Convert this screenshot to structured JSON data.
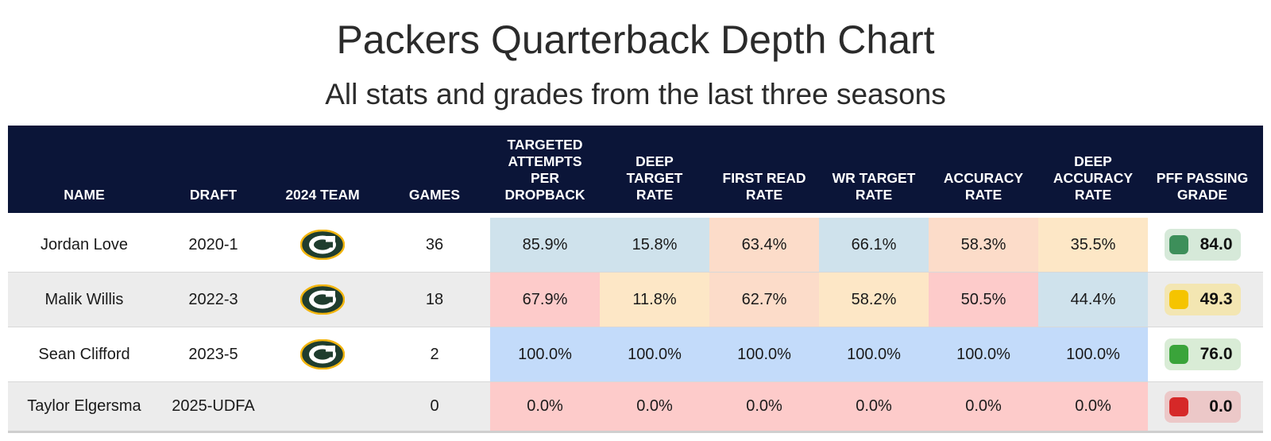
{
  "header": {
    "title": "Packers Quarterback Depth Chart",
    "subtitle": "All stats and grades from the last three seasons"
  },
  "columns": [
    "NAME",
    "DRAFT",
    "2024 TEAM",
    "GAMES",
    "TARGETED\nATTEMPTS\nPER\nDROPBACK",
    "DEEP\nTARGET\nRATE",
    "FIRST READ\nRATE",
    "WR TARGET\nRATE",
    "ACCURACY\nRATE",
    "DEEP\nACCURACY\nRATE",
    "PFF PASSING\nGRADE"
  ],
  "rows": [
    {
      "name": "Jordan Love",
      "draft": "2020-1",
      "team_logo": "packers-logo-icon",
      "games": "36",
      "stats": [
        {
          "value": "85.9%",
          "color": "#cfe2ec"
        },
        {
          "value": "15.8%",
          "color": "#cfe2ec"
        },
        {
          "value": "63.4%",
          "color": "#fcdcc9"
        },
        {
          "value": "66.1%",
          "color": "#cfe2ec"
        },
        {
          "value": "58.3%",
          "color": "#fcdcc9"
        },
        {
          "value": "35.5%",
          "color": "#fde7c6"
        }
      ],
      "grade": {
        "value": "84.0",
        "swatch": "#3d8f5a",
        "pill": "#d6e9d9"
      }
    },
    {
      "name": "Malik Willis",
      "draft": "2022-3",
      "team_logo": "packers-logo-icon",
      "games": "18",
      "stats": [
        {
          "value": "67.9%",
          "color": "#fdcbca"
        },
        {
          "value": "11.8%",
          "color": "#fde7c6"
        },
        {
          "value": "62.7%",
          "color": "#fcdcc9"
        },
        {
          "value": "58.2%",
          "color": "#fde7c6"
        },
        {
          "value": "50.5%",
          "color": "#fdcbca"
        },
        {
          "value": "44.4%",
          "color": "#cfe2ec"
        }
      ],
      "grade": {
        "value": "49.3",
        "swatch": "#f5c400",
        "pill": "#f3e6b2"
      }
    },
    {
      "name": "Sean Clifford",
      "draft": "2023-5",
      "team_logo": "packers-logo-icon",
      "games": "2",
      "stats": [
        {
          "value": "100.0%",
          "color": "#c3dbfa"
        },
        {
          "value": "100.0%",
          "color": "#c3dbfa"
        },
        {
          "value": "100.0%",
          "color": "#c3dbfa"
        },
        {
          "value": "100.0%",
          "color": "#c3dbfa"
        },
        {
          "value": "100.0%",
          "color": "#c3dbfa"
        },
        {
          "value": "100.0%",
          "color": "#c3dbfa"
        }
      ],
      "grade": {
        "value": "76.0",
        "swatch": "#3aa43a",
        "pill": "#d9ecd6"
      }
    },
    {
      "name": "Taylor Elgersma",
      "draft": "2025-UDFA",
      "team_logo": "",
      "games": "0",
      "stats": [
        {
          "value": "0.0%",
          "color": "#fdcbca"
        },
        {
          "value": "0.0%",
          "color": "#fdcbca"
        },
        {
          "value": "0.0%",
          "color": "#fdcbca"
        },
        {
          "value": "0.0%",
          "color": "#fdcbca"
        },
        {
          "value": "0.0%",
          "color": "#fdcbca"
        },
        {
          "value": "0.0%",
          "color": "#fdcbca"
        }
      ],
      "grade": {
        "value": "0.0",
        "swatch": "#d62828",
        "pill": "#ecc8c8"
      }
    }
  ],
  "colors": {
    "header_bg": "#0b1538",
    "logo_green": "#1f3d2e",
    "logo_gold": "#f2b50f"
  }
}
